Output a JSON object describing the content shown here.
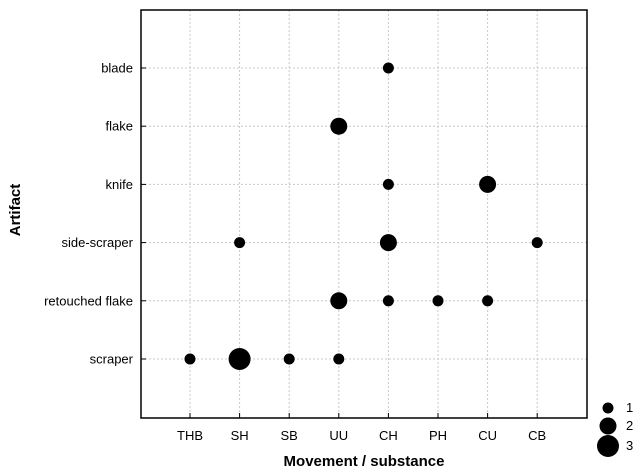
{
  "chart_data": {
    "type": "scatter",
    "title": "",
    "xlabel": "Movement / substance",
    "ylabel": "Artifact",
    "x_categories": [
      "THB",
      "SH",
      "SB",
      "UU",
      "CH",
      "PH",
      "CU",
      "CB"
    ],
    "y_categories": [
      "scraper",
      "retouched flake",
      "side-scraper",
      "knife",
      "flake",
      "blade"
    ],
    "grid": true,
    "legend_position": "bottom-right",
    "size_legend": [
      1,
      2,
      3
    ],
    "points": [
      {
        "x": "CH",
        "y": "blade",
        "count": 1
      },
      {
        "x": "UU",
        "y": "flake",
        "count": 2
      },
      {
        "x": "CH",
        "y": "knife",
        "count": 1
      },
      {
        "x": "CU",
        "y": "knife",
        "count": 2
      },
      {
        "x": "SH",
        "y": "side-scraper",
        "count": 1
      },
      {
        "x": "CH",
        "y": "side-scraper",
        "count": 2
      },
      {
        "x": "CB",
        "y": "side-scraper",
        "count": 1
      },
      {
        "x": "UU",
        "y": "retouched flake",
        "count": 2
      },
      {
        "x": "CH",
        "y": "retouched flake",
        "count": 1
      },
      {
        "x": "PH",
        "y": "retouched flake",
        "count": 1
      },
      {
        "x": "CU",
        "y": "retouched flake",
        "count": 1
      },
      {
        "x": "THB",
        "y": "scraper",
        "count": 1
      },
      {
        "x": "SH",
        "y": "scraper",
        "count": 3
      },
      {
        "x": "SB",
        "y": "scraper",
        "count": 1
      },
      {
        "x": "UU",
        "y": "scraper",
        "count": 1
      }
    ]
  }
}
